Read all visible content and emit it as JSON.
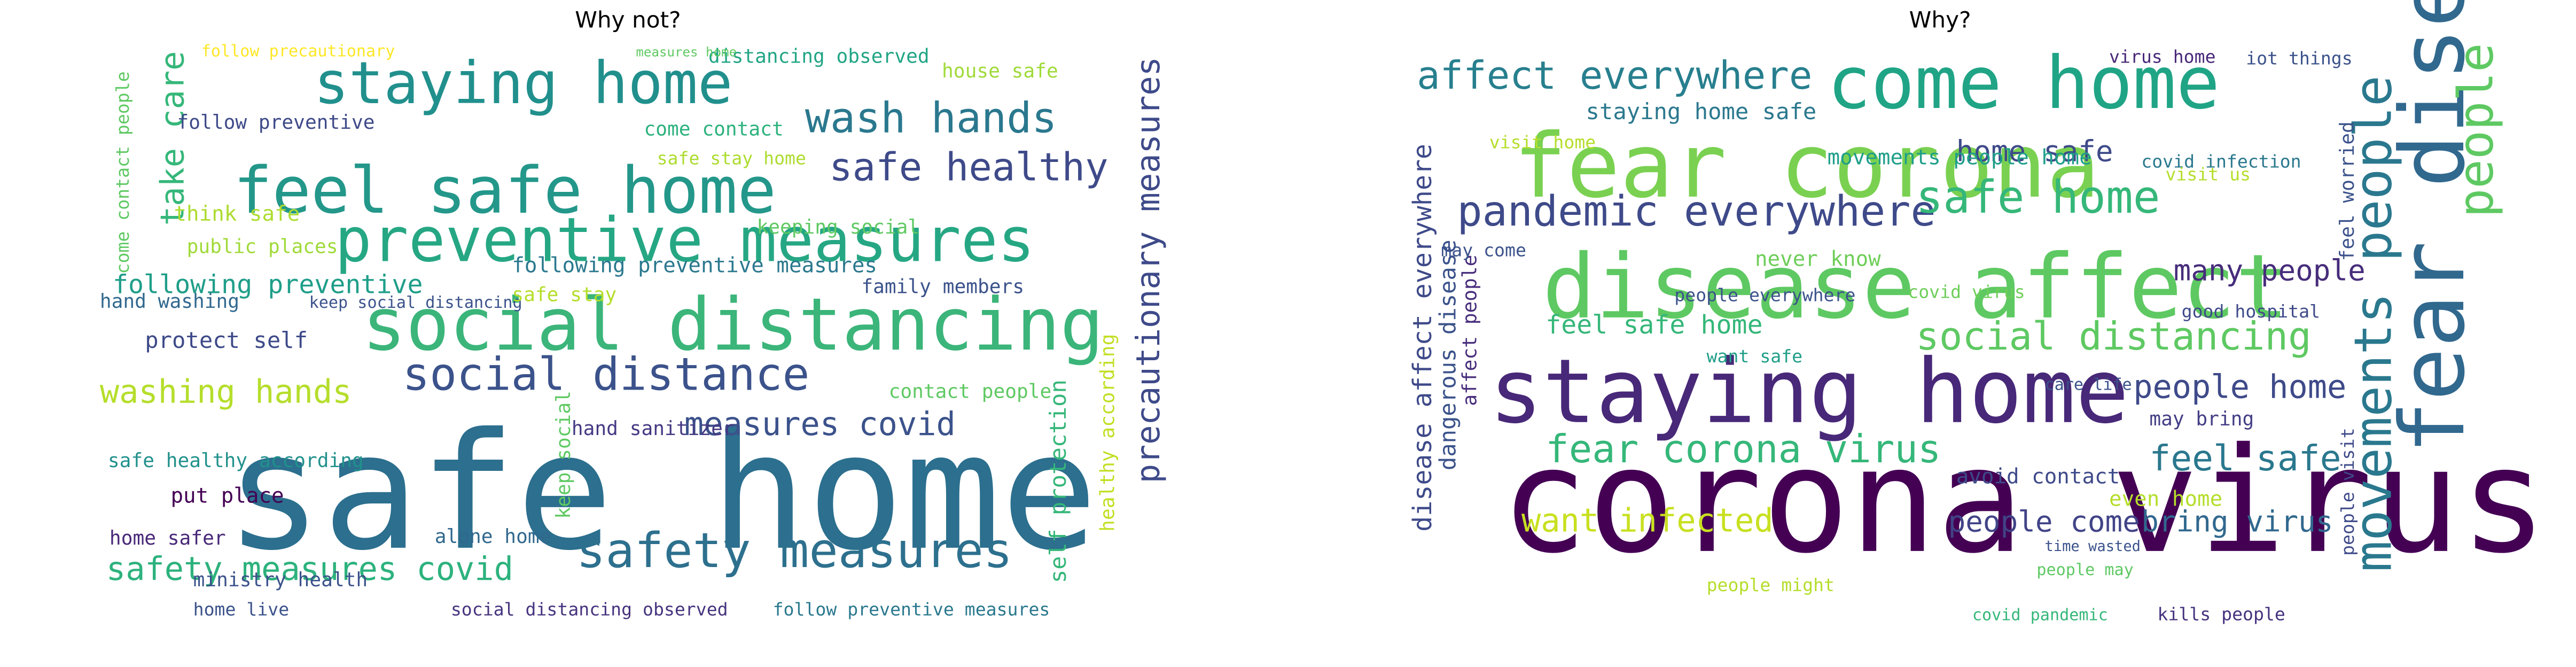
{
  "panels": [
    {
      "title": "Why not?",
      "words": [
        {
          "text": "safe home",
          "color": "#2c6f8e"
        },
        {
          "text": "social distancing",
          "color": "#3bb57a"
        },
        {
          "text": "feel safe home",
          "color": "#23978a"
        },
        {
          "text": "preventive measures",
          "color": "#26a784"
        },
        {
          "text": "staying home",
          "color": "#21908d"
        },
        {
          "text": "safety measures",
          "color": "#2d708e"
        },
        {
          "text": "social distance",
          "color": "#3b528b"
        },
        {
          "text": "wash hands",
          "color": "#2a788e"
        },
        {
          "text": "safe healthy",
          "color": "#3e4a89"
        },
        {
          "text": "safety measures covid",
          "color": "#2db27d"
        },
        {
          "text": "washing hands",
          "color": "#b5de2b"
        },
        {
          "text": "measures covid",
          "color": "#3b528b"
        },
        {
          "text": "precautionary measures",
          "color": "#3e4a89"
        },
        {
          "text": "take care",
          "color": "#35b779"
        },
        {
          "text": "following preventive",
          "color": "#1f9e89"
        },
        {
          "text": "protect self",
          "color": "#3e4a89"
        },
        {
          "text": "following preventive measures",
          "color": "#2a788e"
        },
        {
          "text": "distancing observed",
          "color": "#21a585"
        },
        {
          "text": "house safe",
          "color": "#a0da39"
        },
        {
          "text": "come contact",
          "color": "#2db27d"
        },
        {
          "text": "come contact people",
          "color": "#5ec962"
        },
        {
          "text": "hand washing",
          "color": "#31688e"
        },
        {
          "text": "keep social distancing",
          "color": "#3b528b"
        },
        {
          "text": "public places",
          "color": "#a0da39"
        },
        {
          "text": "think safe",
          "color": "#addc30"
        },
        {
          "text": "follow preventive",
          "color": "#3e4a89"
        },
        {
          "text": "safe healthy according",
          "color": "#21918c"
        },
        {
          "text": "put place",
          "color": "#440154"
        },
        {
          "text": "home safer",
          "color": "#482878"
        },
        {
          "text": "ministry health",
          "color": "#3b528b"
        },
        {
          "text": "alone home",
          "color": "#31688e"
        },
        {
          "text": "hand sanitizer",
          "color": "#443983"
        },
        {
          "text": "contact people",
          "color": "#5ec962"
        },
        {
          "text": "self protection",
          "color": "#35b779"
        },
        {
          "text": "healthy according",
          "color": "#c2df23"
        },
        {
          "text": "social distancing observed",
          "color": "#46337e"
        },
        {
          "text": "home live",
          "color": "#3b528b"
        },
        {
          "text": "follow preventive measures",
          "color": "#2a788e"
        },
        {
          "text": "family members",
          "color": "#3b528b"
        },
        {
          "text": "keeping social",
          "color": "#5ec962"
        },
        {
          "text": "safe stay",
          "color": "#b5de2b"
        },
        {
          "text": "safe stay home",
          "color": "#addc30"
        },
        {
          "text": "keep social",
          "color": "#5ec962"
        },
        {
          "text": "follow precautionary",
          "color": "#fde725"
        },
        {
          "text": "measures home",
          "color": "#5ec962"
        }
      ]
    },
    {
      "title": "Why?",
      "words": [
        {
          "text": "corona virus",
          "color": "#440154"
        },
        {
          "text": "staying home",
          "color": "#482878"
        },
        {
          "text": "disease affect",
          "color": "#5ec962"
        },
        {
          "text": "fear corona",
          "color": "#7ad151"
        },
        {
          "text": "come home",
          "color": "#20a486"
        },
        {
          "text": "fear disease",
          "color": "#31688e"
        },
        {
          "text": "movements people",
          "color": "#2a788e"
        },
        {
          "text": "people",
          "color": "#5ec962"
        },
        {
          "text": "pandemic everywhere",
          "color": "#3e4a89"
        },
        {
          "text": "safe home",
          "color": "#35b779"
        },
        {
          "text": "affect everywhere",
          "color": "#277f8e"
        },
        {
          "text": "social distancing",
          "color": "#5ec962"
        },
        {
          "text": "fear corona virus",
          "color": "#35b779"
        },
        {
          "text": "feel safe",
          "color": "#2a788e"
        },
        {
          "text": "people home",
          "color": "#3e4a89"
        },
        {
          "text": "many people",
          "color": "#472d7b"
        },
        {
          "text": "home safe",
          "color": "#3e4a89"
        },
        {
          "text": "people come",
          "color": "#414487"
        },
        {
          "text": "bring virus",
          "color": "#31688e"
        },
        {
          "text": "want infected",
          "color": "#c8e020"
        },
        {
          "text": "feel safe home",
          "color": "#35b779"
        },
        {
          "text": "staying home safe",
          "color": "#2a788e"
        },
        {
          "text": "movements people home",
          "color": "#1f9e89"
        },
        {
          "text": "disease affect everywhere",
          "color": "#3e4a89"
        },
        {
          "text": "dangerous disease",
          "color": "#3b528b"
        },
        {
          "text": "affect people",
          "color": "#472d7b"
        },
        {
          "text": "never know",
          "color": "#6ece58"
        },
        {
          "text": "even home",
          "color": "#b5de2b"
        },
        {
          "text": "avoid contact",
          "color": "#3e4a89"
        },
        {
          "text": "may bring",
          "color": "#433e85"
        },
        {
          "text": "people everywhere",
          "color": "#3b528b"
        },
        {
          "text": "visit home",
          "color": "#b5de2b"
        },
        {
          "text": "covid infection",
          "color": "#2a788e"
        },
        {
          "text": "feel worried",
          "color": "#3b528b"
        },
        {
          "text": "iot things",
          "color": "#3b528b"
        },
        {
          "text": "virus home",
          "color": "#482878"
        },
        {
          "text": "kills people",
          "color": "#46327e"
        },
        {
          "text": "covid pandemic",
          "color": "#35b779"
        },
        {
          "text": "covid virus",
          "color": "#6ece58"
        },
        {
          "text": "visit us",
          "color": "#b5de2b"
        },
        {
          "text": "good hospital",
          "color": "#3e4a89"
        },
        {
          "text": "people visit",
          "color": "#3e4a89"
        },
        {
          "text": "care life",
          "color": "#3b528b"
        },
        {
          "text": "may come",
          "color": "#3b528b"
        },
        {
          "text": "want safe",
          "color": "#1f9e89"
        },
        {
          "text": "people might",
          "color": "#b5de2b"
        },
        {
          "text": "people may",
          "color": "#5ec962"
        },
        {
          "text": "time wasted",
          "color": "#3b528b"
        }
      ]
    }
  ]
}
